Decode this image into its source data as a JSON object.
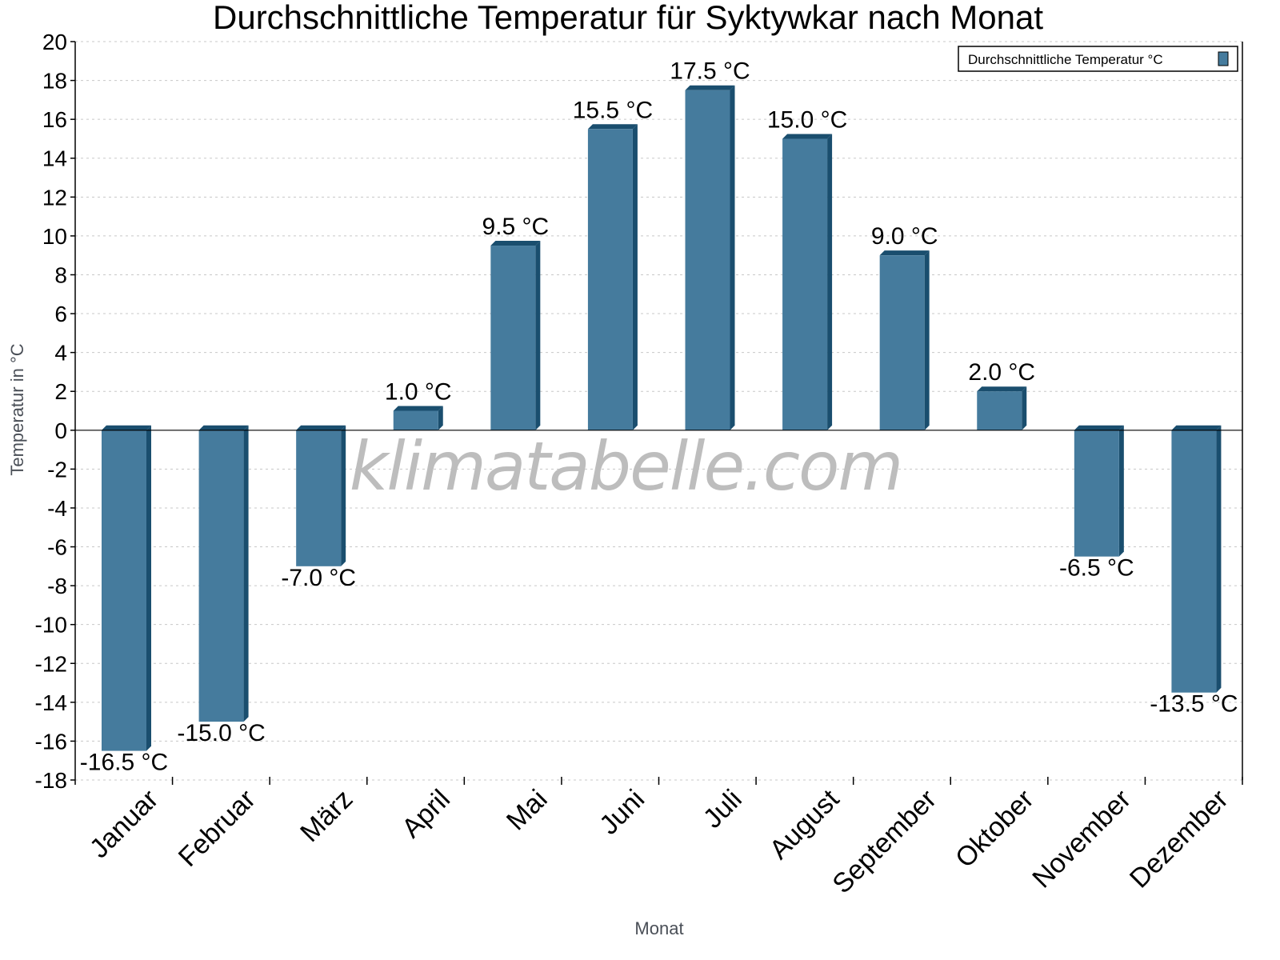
{
  "chart_data": {
    "type": "bar",
    "title": "Durchschnittliche Temperatur für Syktywkar nach Monat",
    "xlabel": "Monat",
    "ylabel": "Temperatur in °C",
    "categories": [
      "Januar",
      "Februar",
      "März",
      "April",
      "Mai",
      "Juni",
      "Juli",
      "August",
      "September",
      "Oktober",
      "November",
      "Dezember"
    ],
    "series": [
      {
        "name": "Durchschnittliche Temperatur °C",
        "values": [
          -16.5,
          -15.0,
          -7.0,
          1.0,
          9.5,
          15.5,
          17.5,
          15.0,
          9.0,
          2.0,
          -6.5,
          -13.5
        ],
        "labels": [
          "-16.5 °C",
          "-15.0 °C",
          "-7.0 °C",
          "1.0 °C",
          "9.5 °C",
          "15.5 °C",
          "17.5 °C",
          "15.0 °C",
          "9.0 °C",
          "2.0 °C",
          "-6.5 °C",
          "-13.5 °C"
        ],
        "color": "#457b9d",
        "side_color": "#1a4e6e"
      }
    ],
    "ylim": [
      -18,
      20
    ],
    "yticks": [
      20,
      18,
      16,
      14,
      12,
      10,
      8,
      6,
      4,
      2,
      0,
      -2,
      -4,
      -6,
      -8,
      -10,
      -12,
      -14,
      -16,
      -18
    ],
    "grid": true,
    "legend_position": "top-right",
    "watermark": "klimatabelle.com"
  }
}
